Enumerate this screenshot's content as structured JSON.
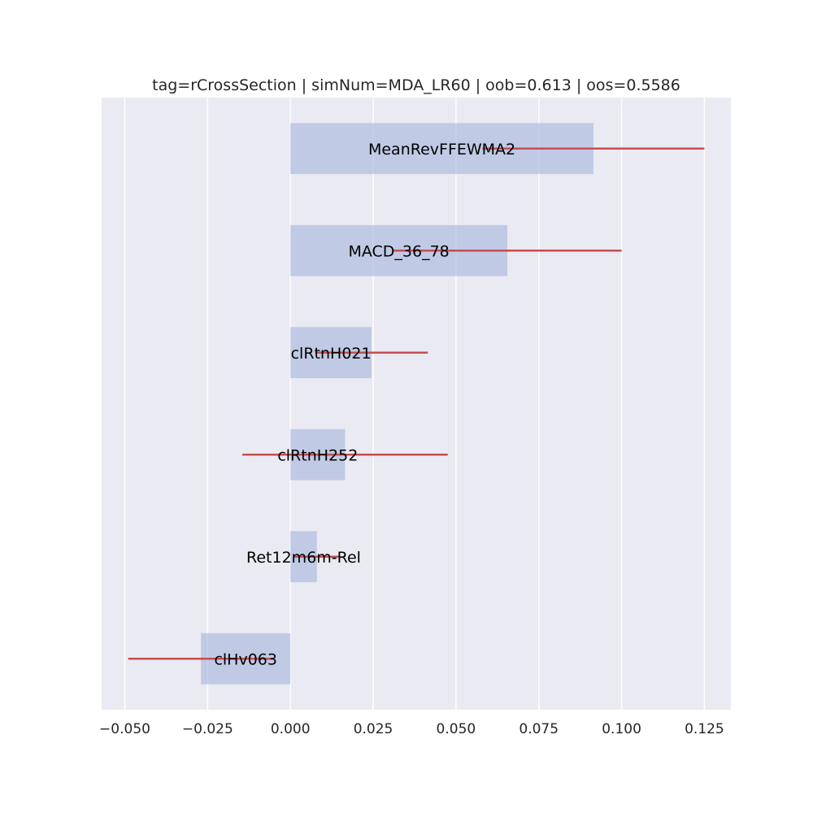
{
  "chart_data": {
    "type": "bar",
    "orientation": "horizontal",
    "title": "tag=rCrossSection | simNum=MDA_LR60 | oob=0.613 | oos=0.5586",
    "categories": [
      "clHv063",
      "Ret12m6m-Rel",
      "clRtnH252",
      "clRtnH021",
      "MACD_36_78",
      "MeanRevFFEWMA2"
    ],
    "values": [
      -0.027,
      0.008,
      0.0165,
      0.0245,
      0.0655,
      0.0915
    ],
    "error": [
      0.022,
      0.007,
      0.031,
      0.017,
      0.0345,
      0.0335
    ],
    "xlim": [
      -0.057,
      0.133
    ],
    "xticks": [
      -0.05,
      -0.025,
      0.0,
      0.025,
      0.05,
      0.075,
      0.1,
      0.125
    ],
    "xtick_labels": [
      "−0.050",
      "−0.025",
      "0.000",
      "0.025",
      "0.050",
      "0.075",
      "0.100",
      "0.125"
    ],
    "xlabel": "",
    "ylabel": "",
    "grid": "vertical",
    "legend": "none",
    "colors": {
      "bar": "#aebce0",
      "error_line": "#c44e52",
      "plot_background": "#eaeaf2",
      "grid": "#ffffff"
    }
  }
}
